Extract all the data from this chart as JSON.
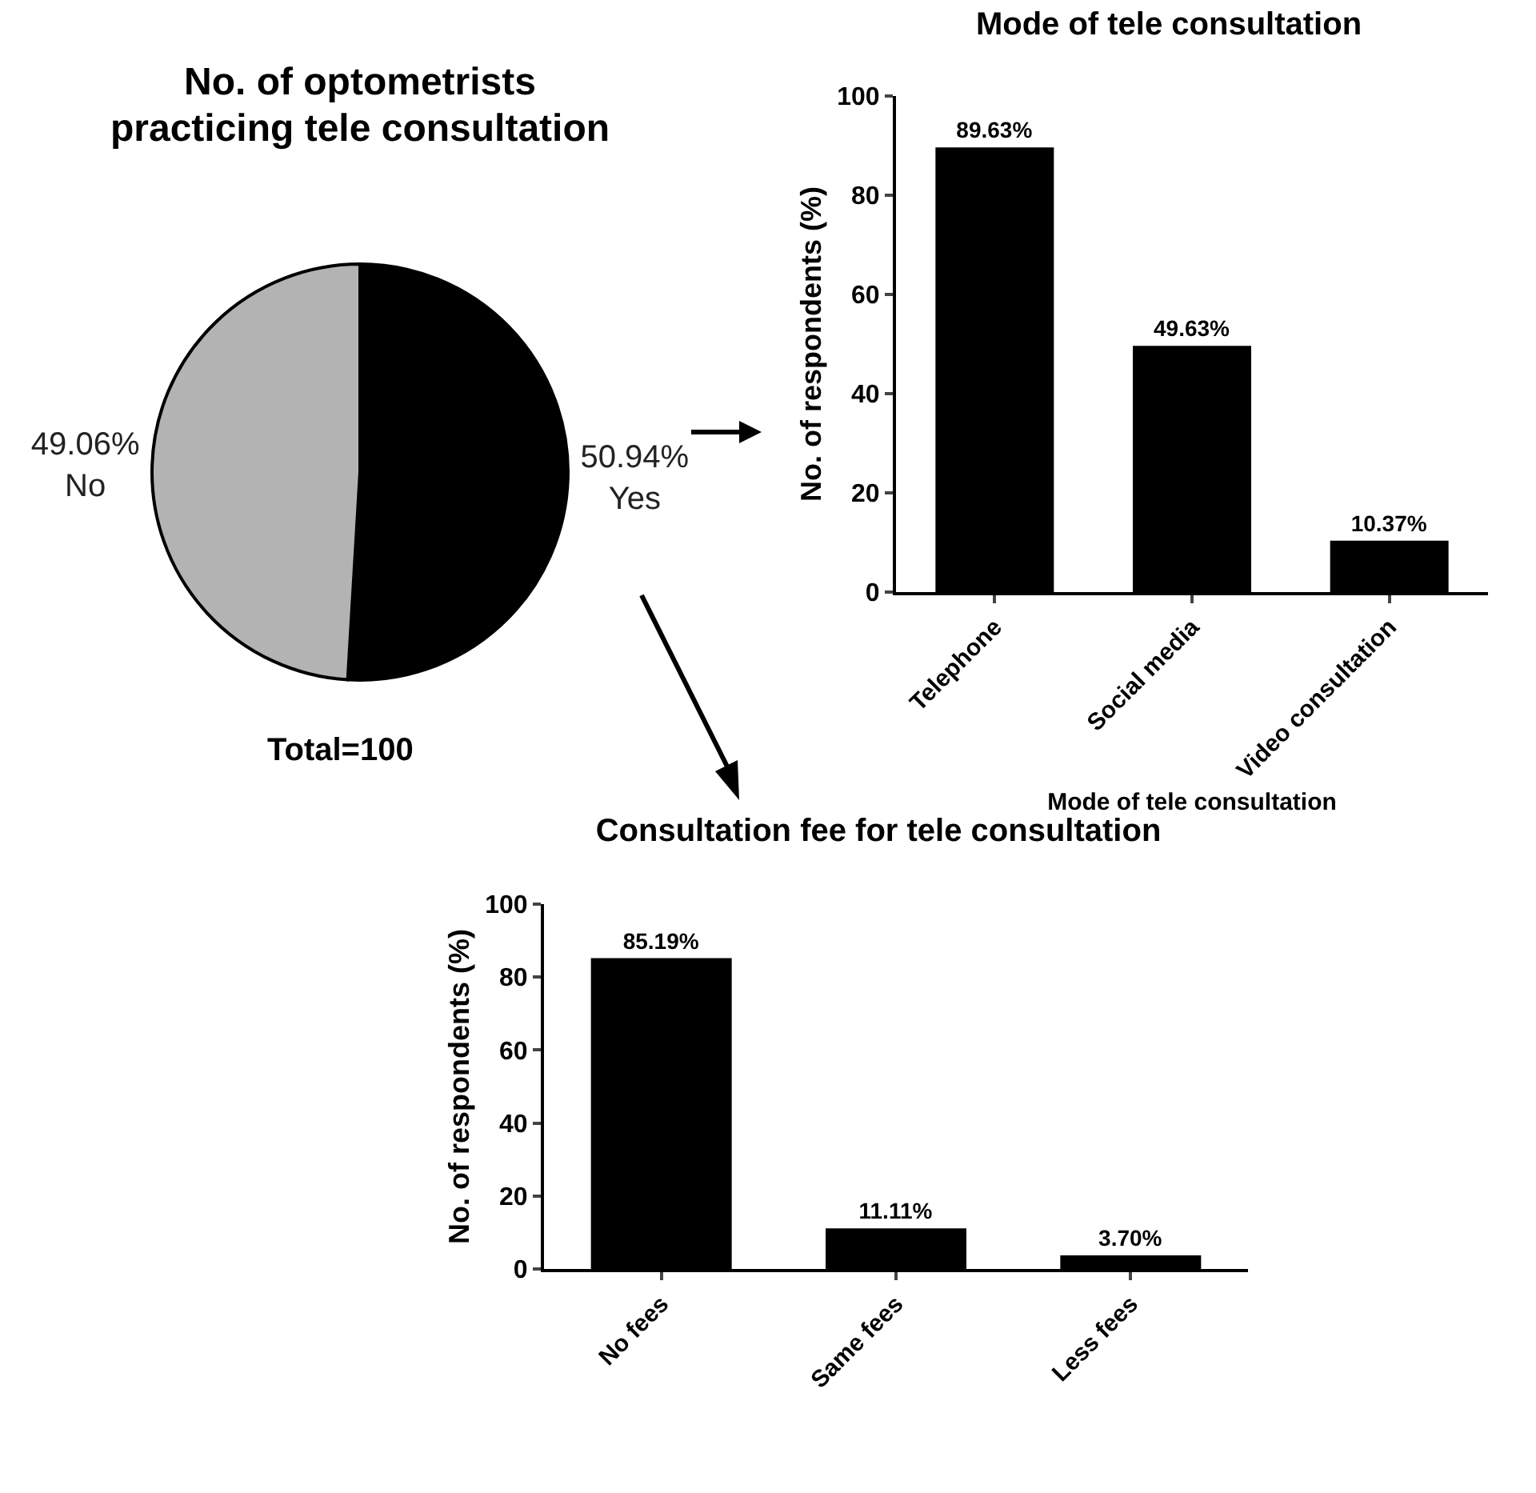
{
  "chart_data": [
    {
      "type": "pie",
      "title": "No. of optometrists\npracticing tele consultation",
      "categories": [
        "Yes",
        "No"
      ],
      "values": [
        50.94,
        49.06
      ],
      "colors": [
        "#000000",
        "#b3b3b3"
      ],
      "value_labels": [
        "50.94%",
        "49.06%"
      ],
      "annotations": [
        "Total=100"
      ],
      "legend": false
    },
    {
      "type": "bar",
      "title": "Mode of tele consultation",
      "xlabel": "Mode of tele consultation",
      "ylabel": "No. of respondents (%)",
      "categories": [
        "Telephone",
        "Social media",
        "Video consultation"
      ],
      "values": [
        89.63,
        49.63,
        10.37
      ],
      "color": "#000000",
      "value_labels": [
        "89.63%",
        "49.63%",
        "10.37%"
      ],
      "ylim": [
        0,
        100
      ],
      "yticks": [
        0,
        20,
        40,
        60,
        80,
        100
      ],
      "grid": false
    },
    {
      "type": "bar",
      "title": "Consultation fee for tele consultation",
      "ylabel": "No. of respondents (%)",
      "categories": [
        "No fees",
        "Same fees",
        "Less fees"
      ],
      "values": [
        85.19,
        11.11,
        3.7
      ],
      "color": "#000000",
      "value_labels": [
        "85.19%",
        "11.11%",
        "3.70%"
      ],
      "ylim": [
        0,
        100
      ],
      "yticks": [
        0,
        20,
        40,
        60,
        80,
        100
      ],
      "grid": false
    }
  ]
}
